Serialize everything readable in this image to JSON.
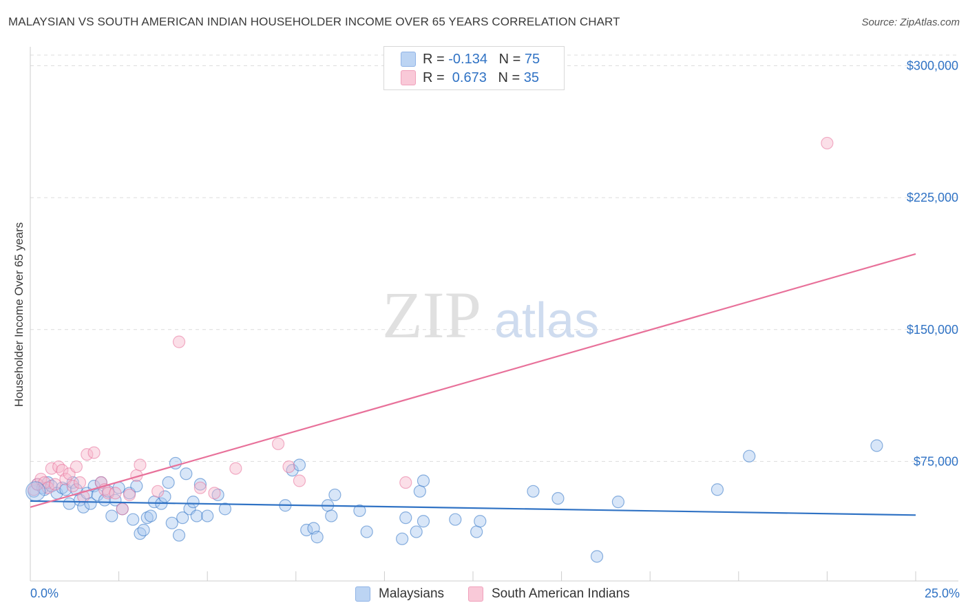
{
  "title": "MALAYSIAN VS SOUTH AMERICAN INDIAN HOUSEHOLDER INCOME OVER 65 YEARS CORRELATION CHART",
  "source": "Source: ZipAtlas.com",
  "colors": {
    "blue": "#2f72c4",
    "pink": "#e8719a",
    "blue_fill": "#a9c8f0",
    "pink_fill": "#f7b9cc",
    "tick_label": "#2f72c4"
  },
  "legend_top": [
    {
      "r_label": "R = ",
      "r_value": "-0.134",
      "n_label": "N = ",
      "n_value": "75"
    },
    {
      "r_label": "R = ",
      "r_value": " 0.673",
      "n_label": "N = ",
      "n_value": "35"
    }
  ],
  "legend_bottom": [
    "Malaysians",
    "South American Indians"
  ],
  "watermark": {
    "part1": "ZIP",
    "part2": "atlas"
  },
  "chart_data": {
    "type": "scatter",
    "title": "MALAYSIAN VS SOUTH AMERICAN INDIAN HOUSEHOLDER INCOME OVER 65 YEARS CORRELATION CHART",
    "xlabel": "",
    "ylabel": "Householder Income Over 65 years",
    "xlim": [
      0,
      25
    ],
    "ylim": [
      0,
      305000
    ],
    "x_tick_labels": [
      "0.0%",
      "25.0%"
    ],
    "y_ticks": [
      75000,
      150000,
      225000,
      300000
    ],
    "y_tick_labels": [
      "$75,000",
      "$150,000",
      "$225,000",
      "$300,000"
    ],
    "grid": true,
    "series": [
      {
        "name": "Malaysians",
        "color": "#2f72c4",
        "trend": {
          "x": [
            0,
            25
          ],
          "y": [
            52500,
            44500
          ]
        },
        "points": [
          [
            0.1,
            58000
          ],
          [
            0.2,
            62000
          ],
          [
            0.35,
            60000
          ],
          [
            0.4,
            59000
          ],
          [
            0.5,
            63000
          ],
          [
            0.6,
            61000
          ],
          [
            0.75,
            57000
          ],
          [
            0.9,
            60000
          ],
          [
            1.0,
            59000
          ],
          [
            1.1,
            51000
          ],
          [
            1.2,
            63000
          ],
          [
            1.3,
            59000
          ],
          [
            1.4,
            53000
          ],
          [
            1.5,
            49000
          ],
          [
            1.6,
            57000
          ],
          [
            1.7,
            51000
          ],
          [
            1.8,
            61000
          ],
          [
            1.9,
            56000
          ],
          [
            2.0,
            63000
          ],
          [
            2.1,
            53000
          ],
          [
            2.2,
            58000
          ],
          [
            2.3,
            44000
          ],
          [
            2.4,
            53000
          ],
          [
            2.5,
            60000
          ],
          [
            2.6,
            48000
          ],
          [
            2.8,
            57000
          ],
          [
            2.9,
            42000
          ],
          [
            3.0,
            61000
          ],
          [
            3.1,
            34000
          ],
          [
            3.2,
            36000
          ],
          [
            3.3,
            43000
          ],
          [
            3.4,
            44000
          ],
          [
            3.5,
            52000
          ],
          [
            3.7,
            51000
          ],
          [
            3.8,
            55000
          ],
          [
            3.9,
            63000
          ],
          [
            4.0,
            40000
          ],
          [
            4.1,
            74000
          ],
          [
            4.2,
            33000
          ],
          [
            4.3,
            43000
          ],
          [
            4.4,
            68000
          ],
          [
            4.5,
            48000
          ],
          [
            4.6,
            52000
          ],
          [
            4.7,
            44000
          ],
          [
            4.8,
            62000
          ],
          [
            5.0,
            44000
          ],
          [
            5.3,
            56000
          ],
          [
            5.5,
            48000
          ],
          [
            7.2,
            50000
          ],
          [
            7.4,
            70000
          ],
          [
            7.6,
            73000
          ],
          [
            7.8,
            36000
          ],
          [
            8.0,
            37000
          ],
          [
            8.1,
            32000
          ],
          [
            8.4,
            50000
          ],
          [
            8.6,
            56000
          ],
          [
            8.5,
            44000
          ],
          [
            9.3,
            47000
          ],
          [
            9.5,
            35000
          ],
          [
            10.5,
            31000
          ],
          [
            10.6,
            43000
          ],
          [
            10.9,
            35000
          ],
          [
            11.1,
            41000
          ],
          [
            11.0,
            58000
          ],
          [
            11.1,
            64000
          ],
          [
            12.0,
            42000
          ],
          [
            12.6,
            35000
          ],
          [
            12.7,
            41000
          ],
          [
            14.2,
            58000
          ],
          [
            14.9,
            54000
          ],
          [
            16.0,
            21000
          ],
          [
            16.6,
            52000
          ],
          [
            19.4,
            59000
          ],
          [
            20.3,
            78000
          ],
          [
            23.9,
            84000
          ]
        ]
      },
      {
        "name": "South American Indians",
        "color": "#e8719a",
        "trend": {
          "x": [
            0,
            25
          ],
          "y": [
            49000,
            193000
          ]
        },
        "points": [
          [
            0.1,
            59000
          ],
          [
            0.2,
            62000
          ],
          [
            0.3,
            65000
          ],
          [
            0.4,
            63000
          ],
          [
            0.5,
            60000
          ],
          [
            0.6,
            71000
          ],
          [
            0.7,
            62000
          ],
          [
            0.8,
            72000
          ],
          [
            0.9,
            70000
          ],
          [
            1.0,
            65000
          ],
          [
            1.1,
            68000
          ],
          [
            1.2,
            61000
          ],
          [
            1.3,
            72000
          ],
          [
            1.4,
            63000
          ],
          [
            1.5,
            55000
          ],
          [
            1.6,
            79000
          ],
          [
            1.8,
            80000
          ],
          [
            2.0,
            63000
          ],
          [
            2.1,
            59000
          ],
          [
            2.2,
            57000
          ],
          [
            2.4,
            57000
          ],
          [
            2.6,
            48000
          ],
          [
            2.8,
            56000
          ],
          [
            3.0,
            67000
          ],
          [
            3.1,
            73000
          ],
          [
            3.6,
            58000
          ],
          [
            4.2,
            143000
          ],
          [
            4.8,
            60000
          ],
          [
            5.2,
            57000
          ],
          [
            5.8,
            71000
          ],
          [
            7.0,
            85000
          ],
          [
            7.3,
            72000
          ],
          [
            7.6,
            64000
          ],
          [
            10.6,
            63000
          ],
          [
            22.5,
            256000
          ]
        ]
      }
    ]
  }
}
